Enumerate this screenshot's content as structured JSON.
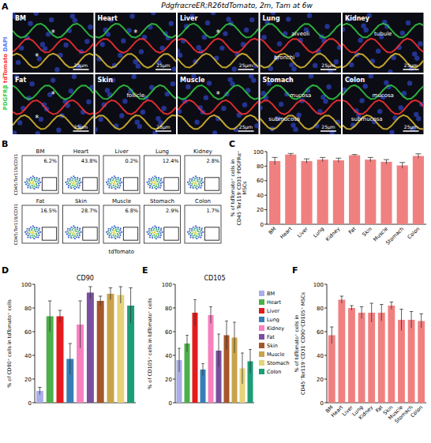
{
  "figure": {
    "title": "PdgfrαcreER;R26tdTomato, 2m, Tam at 6w",
    "panel_letters": [
      "A",
      "B",
      "C",
      "D",
      "E",
      "F"
    ],
    "panel_a": {
      "stains": [
        {
          "name": "PDGFRβ",
          "color": "#33cc44"
        },
        {
          "name": "tdTomato",
          "color": "#ff3333"
        },
        {
          "name": "DAPI",
          "color": "#5577ff"
        }
      ],
      "images": [
        {
          "label": "BM",
          "annotations": [
            "*",
            "*"
          ],
          "scale_bar": "25μm"
        },
        {
          "label": "Heart",
          "annotations": [
            "*"
          ],
          "scale_bar": "25μm"
        },
        {
          "label": "Liver",
          "annotations": [
            "*"
          ],
          "scale_bar": "25μm"
        },
        {
          "label": "Lung",
          "annotations": [
            "alveoli",
            "bronchi"
          ],
          "scale_bar": "25μm"
        },
        {
          "label": "Kidney",
          "annotations": [
            "tubule"
          ],
          "scale_bar": "25μm"
        },
        {
          "label": "Fat",
          "annotations": [
            "*",
            "*"
          ],
          "scale_bar": "25μm"
        },
        {
          "label": "Skin",
          "annotations": [
            "follicle"
          ],
          "scale_bar": "25μm"
        },
        {
          "label": "Muscle",
          "annotations": [
            "*"
          ],
          "scale_bar": "25μm"
        },
        {
          "label": "Stomach",
          "annotations": [
            "mucosa",
            "submucosa"
          ],
          "scale_bar": "25μm"
        },
        {
          "label": "Colon",
          "annotations": [
            "mucosa",
            "submucosa"
          ],
          "scale_bar": "25μm"
        }
      ]
    },
    "panel_b": {
      "y_label": "CD45/Ter119/CD31",
      "x_label": "tdTomato",
      "plots": [
        {
          "label": "BM",
          "gate": "6.2%"
        },
        {
          "label": "Heart",
          "gate": "43.8%"
        },
        {
          "label": "Liver",
          "gate": "0.2%"
        },
        {
          "label": "Lung",
          "gate": "12.4%"
        },
        {
          "label": "Kidney",
          "gate": "2.8%"
        },
        {
          "label": "Fat",
          "gate": "16.5%"
        },
        {
          "label": "Skin",
          "gate": "28.7%"
        },
        {
          "label": "Muscle",
          "gate": "6.8%"
        },
        {
          "label": "Stomach",
          "gate": "2.9%"
        },
        {
          "label": "Colon",
          "gate": "1.7%"
        }
      ]
    }
  },
  "chart_data": [
    {
      "type": "bar",
      "y_label": "% of tdTomato⁺ cells in CD45⁻Ter119⁻CD31⁻PDGFRα⁺ MSCs",
      "categories": [
        "BM",
        "Heart",
        "Liver",
        "Lung",
        "Kidney",
        "Fat",
        "Skin",
        "Muscle",
        "Stomach",
        "Colon"
      ],
      "values": [
        87,
        96,
        87,
        89,
        88,
        95,
        89,
        86,
        81,
        94
      ],
      "errors": [
        5,
        1.5,
        3,
        3,
        3,
        1,
        3,
        3,
        4,
        3
      ],
      "color": "#f08080",
      "ylim": [
        0,
        100
      ],
      "yticks": [
        0,
        20,
        40,
        60,
        80,
        100
      ]
    },
    {
      "type": "bar",
      "title": "CD90",
      "y_label": "% of CD90⁺ cells in tdTomato⁺ cells",
      "categories": [
        "BM",
        "Heart",
        "Liver",
        "Lung",
        "Kidney",
        "Fat",
        "Skin",
        "Muscle",
        "Stomach",
        "Colon"
      ],
      "values": [
        10,
        73,
        73,
        37,
        66,
        93,
        86,
        92,
        91,
        82
      ],
      "errors": [
        3,
        13,
        5,
        13,
        20,
        5,
        4,
        5,
        7,
        15
      ],
      "colors": [
        "#a9aee6",
        "#4daf4a",
        "#e41a1c",
        "#377eb8",
        "#f781bf",
        "#7b4fa0",
        "#a65628",
        "#c9a24a",
        "#e6d27a",
        "#1b9e77"
      ],
      "ylim": [
        0,
        100
      ],
      "yticks": [
        0,
        20,
        40,
        60,
        80,
        100
      ],
      "tick_labels": "y"
    },
    {
      "type": "bar",
      "title": "CD105",
      "y_label": "% of CD105⁺ cells in tdTomato⁺ cells",
      "categories": [
        "BM",
        "Heart",
        "Liver",
        "Lung",
        "Kidney",
        "Fat",
        "Skin",
        "Muscle",
        "Stomach",
        "Colon"
      ],
      "values": [
        36,
        50,
        76,
        28,
        74,
        44,
        57,
        55,
        29,
        35
      ],
      "errors": [
        10,
        7,
        11,
        5,
        7,
        14,
        12,
        13,
        13,
        10
      ],
      "colors": [
        "#a9aee6",
        "#4daf4a",
        "#e41a1c",
        "#377eb8",
        "#f781bf",
        "#7b4fa0",
        "#a65628",
        "#c9a24a",
        "#e6d27a",
        "#1b9e77"
      ],
      "ylim": [
        0,
        100
      ],
      "yticks": [
        0,
        20,
        40,
        60,
        80,
        100
      ],
      "tick_labels": "y",
      "legend": "right"
    },
    {
      "type": "bar",
      "y_label": "% of tdTomato⁺ cells in CD45⁻Ter119⁻CD31⁻CD90⁺CD105⁺ MSCs",
      "categories": [
        "BM",
        "Heart",
        "Liver",
        "Lung",
        "Kidney",
        "Fat",
        "Skin",
        "Muscle",
        "Stomach",
        "Colon"
      ],
      "values": [
        57,
        87,
        80,
        76,
        76,
        76,
        82,
        70,
        70,
        69
      ],
      "errors": [
        7,
        3,
        2,
        5,
        8,
        7,
        3,
        9,
        7,
        6
      ],
      "color": "#f08080",
      "ylim": [
        0,
        100
      ],
      "yticks": [
        0,
        20,
        40,
        60,
        80,
        100
      ]
    }
  ]
}
